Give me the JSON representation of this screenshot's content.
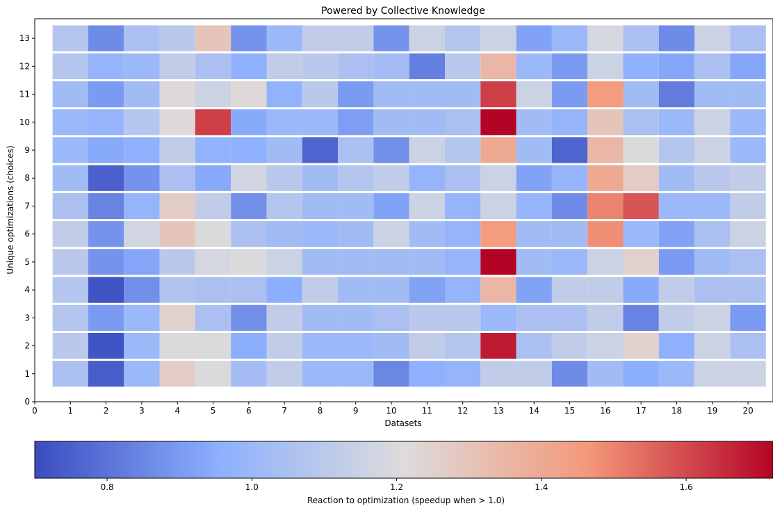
{
  "chart_data": {
    "type": "heatmap",
    "title": "Powered by Collective Knowledge",
    "xlabel": "Datasets",
    "ylabel": "Unique optimizations (choices)",
    "x_ticks": [
      "0",
      "1",
      "2",
      "3",
      "4",
      "5",
      "6",
      "7",
      "8",
      "9",
      "10",
      "11",
      "12",
      "13",
      "14",
      "15",
      "16",
      "17",
      "18",
      "19",
      "20"
    ],
    "y_ticks": [
      "0",
      "1",
      "2",
      "3",
      "4",
      "5",
      "6",
      "7",
      "8",
      "9",
      "10",
      "11",
      "12",
      "13"
    ],
    "xlim": [
      0,
      20.7
    ],
    "ylim": [
      0,
      13.7
    ],
    "x": [
      1,
      2,
      3,
      4,
      5,
      6,
      7,
      8,
      9,
      10,
      11,
      12,
      13,
      14,
      15,
      16,
      17,
      18,
      19,
      20
    ],
    "y": [
      1,
      2,
      3,
      4,
      5,
      6,
      7,
      8,
      9,
      10,
      11,
      12,
      13
    ],
    "values": [
      [
        1.05,
        0.74,
        1.0,
        1.27,
        1.2,
        1.03,
        1.12,
        1.0,
        1.0,
        0.85,
        0.96,
        0.98,
        1.12,
        1.12,
        0.86,
        1.02,
        0.95,
        1.0,
        1.15,
        1.15
      ],
      [
        1.1,
        0.72,
        1.0,
        1.2,
        1.2,
        0.95,
        1.12,
        1.0,
        1.0,
        1.02,
        1.12,
        1.08,
        1.68,
        1.05,
        1.12,
        1.15,
        1.25,
        0.96,
        1.15,
        1.05
      ],
      [
        1.08,
        0.9,
        1.0,
        1.25,
        1.05,
        0.87,
        1.12,
        1.02,
        1.02,
        1.05,
        1.1,
        1.1,
        1.0,
        1.05,
        1.05,
        1.12,
        0.84,
        1.12,
        1.15,
        0.9
      ],
      [
        1.08,
        0.72,
        0.87,
        1.07,
        1.05,
        1.05,
        0.95,
        1.12,
        1.02,
        1.02,
        0.92,
        0.98,
        1.35,
        0.92,
        1.12,
        1.12,
        0.94,
        1.12,
        1.05,
        1.05
      ],
      [
        1.1,
        0.88,
        0.93,
        1.1,
        1.18,
        1.2,
        1.15,
        1.02,
        1.02,
        1.02,
        1.02,
        0.98,
        1.72,
        1.02,
        1.0,
        1.15,
        1.25,
        0.9,
        1.02,
        1.05
      ],
      [
        1.12,
        0.88,
        1.17,
        1.3,
        1.2,
        1.05,
        1.02,
        1.0,
        1.02,
        1.15,
        1.02,
        0.98,
        1.45,
        1.02,
        1.02,
        1.48,
        1.0,
        0.92,
        1.05,
        1.15
      ],
      [
        1.05,
        0.84,
        0.98,
        1.27,
        1.12,
        0.87,
        1.08,
        1.02,
        1.02,
        0.92,
        1.15,
        0.98,
        1.15,
        0.98,
        0.86,
        1.5,
        1.58,
        1.0,
        1.0,
        1.12
      ],
      [
        1.02,
        0.75,
        0.88,
        1.05,
        0.94,
        1.17,
        1.1,
        1.02,
        1.08,
        1.12,
        0.98,
        1.05,
        1.15,
        0.92,
        0.98,
        1.4,
        1.27,
        1.02,
        1.1,
        1.12
      ],
      [
        1.0,
        0.94,
        0.96,
        1.12,
        0.97,
        0.96,
        1.02,
        0.76,
        1.05,
        0.87,
        1.15,
        1.08,
        1.4,
        1.02,
        0.76,
        1.35,
        1.2,
        1.08,
        1.15,
        1.0
      ],
      [
        1.0,
        0.98,
        1.08,
        1.22,
        1.62,
        0.94,
        1.0,
        1.0,
        0.91,
        1.02,
        1.02,
        1.05,
        1.72,
        1.02,
        0.98,
        1.3,
        1.05,
        1.0,
        1.15,
        1.0
      ],
      [
        1.02,
        0.9,
        1.02,
        1.22,
        1.15,
        1.22,
        0.97,
        1.1,
        0.9,
        1.02,
        1.02,
        1.02,
        1.62,
        1.15,
        0.9,
        1.45,
        1.02,
        0.82,
        1.02,
        1.02
      ],
      [
        1.08,
        0.98,
        1.0,
        1.12,
        1.05,
        0.96,
        1.12,
        1.1,
        1.05,
        1.03,
        0.83,
        1.1,
        1.35,
        1.0,
        0.9,
        1.15,
        0.96,
        0.93,
        1.05,
        0.93
      ],
      [
        1.08,
        0.86,
        1.05,
        1.1,
        1.3,
        0.88,
        1.0,
        1.12,
        1.12,
        0.88,
        1.15,
        1.08,
        1.15,
        0.92,
        1.0,
        1.18,
        1.05,
        0.86,
        1.15,
        1.05
      ]
    ],
    "colorscale": "coolwarm",
    "colorbar": {
      "range": [
        0.7,
        1.72
      ],
      "ticks": [
        0.8,
        1.0,
        1.2,
        1.4,
        1.6
      ],
      "tick_labels": [
        "0.8",
        "1.0",
        "1.2",
        "1.4",
        "1.6"
      ],
      "label": "Reaction to optimization (speedup when > 1.0)"
    },
    "grid": false,
    "colors": {
      "low": "#3b4cc0",
      "mid": "#dddcdc",
      "high": "#b40426",
      "row_separator": "#ffffff"
    }
  }
}
